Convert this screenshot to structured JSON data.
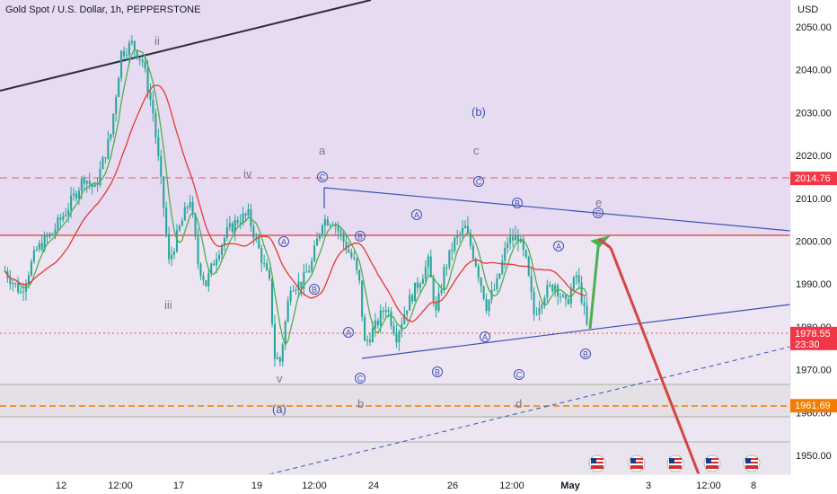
{
  "header": {
    "symbol_title": "Gold Spot / U.S. Dollar, 1h, PEPPERSTONE"
  },
  "colors": {
    "upper_zone": "#e6d9f0",
    "lower_zone": "#ece6ef",
    "candle": "#26a69a",
    "ma_green": "#4caf50",
    "ma_red": "#e53935",
    "trendline_blue": "#3f51b5",
    "resistance_red": "#e53935",
    "forecast_green": "#4caf50",
    "forecast_red": "#d84343",
    "wave_blue": "#3f51b5",
    "wave_gray": "#787b86",
    "price_tag_red": "#f23645",
    "price_tag_orange": "#f57c00"
  },
  "chart_data": {
    "type": "candlestick",
    "currency_label": "USD",
    "ylim": [
      1945,
      2057
    ],
    "y_ticks": [
      1950,
      1960,
      1970,
      1980,
      1990,
      2000,
      2010,
      2020,
      2030,
      2040,
      2050
    ],
    "x_ticks": [
      "12",
      "12:00",
      "17",
      "19",
      "12:00",
      "24",
      "26",
      "12:00",
      "May",
      "3",
      "12:00",
      "8"
    ],
    "price_tags": [
      {
        "label": "2014.76",
        "value": 2014.76,
        "color": "#f23645"
      },
      {
        "label": "1978.55",
        "value": 1978.55,
        "color": "#f23645",
        "countdown": "23:30"
      },
      {
        "label": "1961.69",
        "value": 1961.69,
        "color": "#f57c00"
      }
    ],
    "horizontal_levels": [
      {
        "value": 2014.76,
        "style": "dashed"
      },
      {
        "value": 2001.5,
        "style": "solid"
      },
      {
        "value": 1978.55,
        "style": "dotted"
      },
      {
        "value": 1961.69,
        "style": "dashed"
      }
    ],
    "price_path": [
      [
        0,
        1993
      ],
      [
        6,
        1988
      ],
      [
        12,
        1998
      ],
      [
        18,
        2002
      ],
      [
        24,
        2008
      ],
      [
        30,
        2015
      ],
      [
        34,
        2012
      ],
      [
        40,
        2025
      ],
      [
        44,
        2044
      ],
      [
        48,
        2046
      ],
      [
        52,
        2042
      ],
      [
        56,
        2030
      ],
      [
        60,
        2008
      ],
      [
        62,
        1995
      ],
      [
        66,
        2003
      ],
      [
        70,
        2010
      ],
      [
        73,
        1995
      ],
      [
        76,
        1990
      ],
      [
        80,
        1997
      ],
      [
        84,
        2002
      ],
      [
        88,
        2005
      ],
      [
        92,
        2006
      ],
      [
        96,
        1998
      ],
      [
        100,
        1990
      ],
      [
        102,
        1973
      ],
      [
        104,
        1972
      ],
      [
        108,
        1990
      ],
      [
        112,
        1990
      ],
      [
        116,
        1995
      ],
      [
        120,
        2005
      ],
      [
        124,
        2005
      ],
      [
        128,
        2000
      ],
      [
        132,
        1995
      ],
      [
        134,
        1990
      ],
      [
        136,
        1976
      ],
      [
        140,
        1980
      ],
      [
        144,
        1985
      ],
      [
        148,
        1978
      ],
      [
        152,
        1985
      ],
      [
        156,
        1990
      ],
      [
        160,
        1995
      ],
      [
        163,
        1983
      ],
      [
        166,
        1993
      ],
      [
        170,
        2000
      ],
      [
        174,
        2003
      ],
      [
        178,
        1995
      ],
      [
        182,
        1985
      ],
      [
        186,
        1990
      ],
      [
        190,
        2000
      ],
      [
        194,
        2001
      ],
      [
        197,
        1995
      ],
      [
        200,
        1983
      ],
      [
        204,
        1988
      ],
      [
        208,
        1990
      ],
      [
        212,
        1985
      ],
      [
        216,
        1992
      ],
      [
        218,
        1987
      ],
      [
        220,
        1980
      ]
    ],
    "annotations": [
      {
        "text": "ii"
      },
      {
        "text": "i"
      },
      {
        "text": "iv"
      },
      {
        "text": "iii"
      },
      {
        "text": "v"
      },
      {
        "text": "(a)"
      },
      {
        "text": "a"
      },
      {
        "text": "b"
      },
      {
        "text": "c"
      },
      {
        "text": "d"
      },
      {
        "text": "e"
      },
      {
        "text": "(b)"
      },
      {
        "text": "A"
      },
      {
        "text": "B"
      },
      {
        "text": "C"
      }
    ]
  }
}
